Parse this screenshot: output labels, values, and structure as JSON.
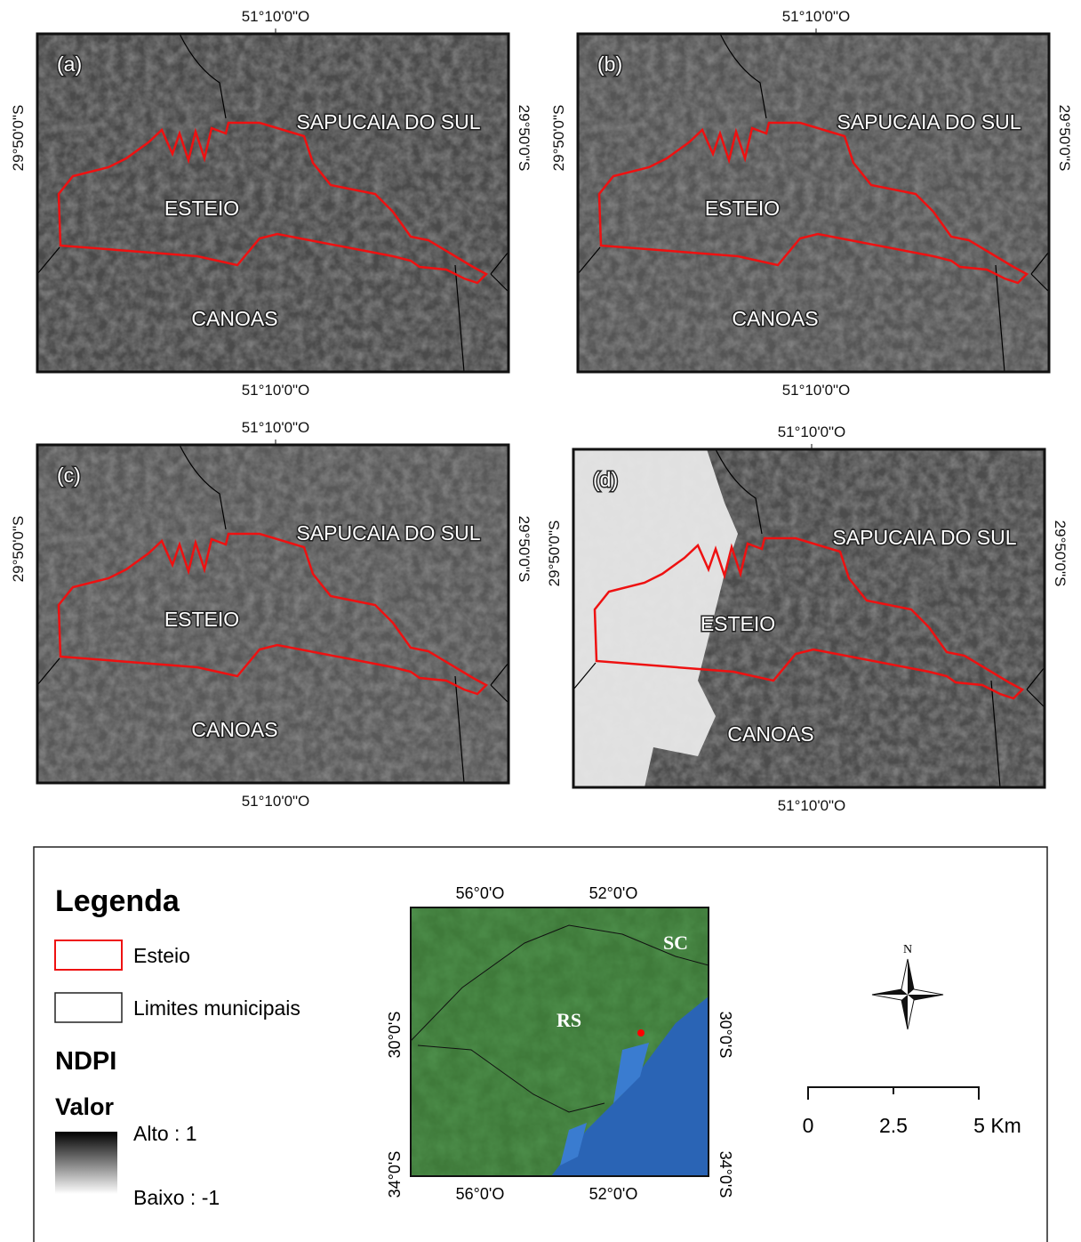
{
  "panels": [
    {
      "label": "(a)",
      "lon_top": "51°10'0\"O",
      "lon_bottom": "51°10'0\"O",
      "lat_left": "29°50'0\"S",
      "lat_right": "29°50'0\"S",
      "places": [
        "SAPUCAIA DO SUL",
        "ESTEIO",
        "CANOAS"
      ]
    },
    {
      "label": "(b)",
      "lon_top": "51°10'0\"O",
      "lon_bottom": "51°10'0\"O",
      "lat_left": "29°50'0\"S",
      "lat_right": "29°50'0\"S",
      "places": [
        "SAPUCAIA DO SUL",
        "ESTEIO",
        "CANOAS"
      ]
    },
    {
      "label": "(c)",
      "lon_top": "51°10'0\"O",
      "lon_bottom": "51°10'0\"O",
      "lat_left": "29°50'0\"S",
      "lat_right": "29°50'0\"S",
      "places": [
        "SAPUCAIA DO SUL",
        "ESTEIO",
        "CANOAS"
      ]
    },
    {
      "label": "(d)",
      "lon_top": "51°10'0\"O",
      "lon_bottom": "51°10'0\"O",
      "lat_left": "29°50'0\"S",
      "lat_right": "29°50'0\"S",
      "places": [
        "SAPUCAIA DO SUL",
        "ESTEIO",
        "CANOAS"
      ]
    }
  ],
  "legend": {
    "title": "Legenda",
    "items": [
      "Esteio",
      "Limites municipais"
    ],
    "ndpi": "NDPI",
    "valor": "Valor",
    "high": "Alto : 1",
    "low": "Baixo : -1"
  },
  "inset": {
    "lon_top": [
      "56°0'O",
      "52°0'O"
    ],
    "lon_bottom": [
      "56°0'O",
      "52°0'O"
    ],
    "lat_left": [
      "30°0'S",
      "34°0'S"
    ],
    "lat_right": [
      "30°0'S",
      "34°0'S"
    ],
    "states": [
      "RS",
      "SC"
    ]
  },
  "north": "N",
  "scale": [
    "0",
    "2.5",
    "5 Km"
  ]
}
